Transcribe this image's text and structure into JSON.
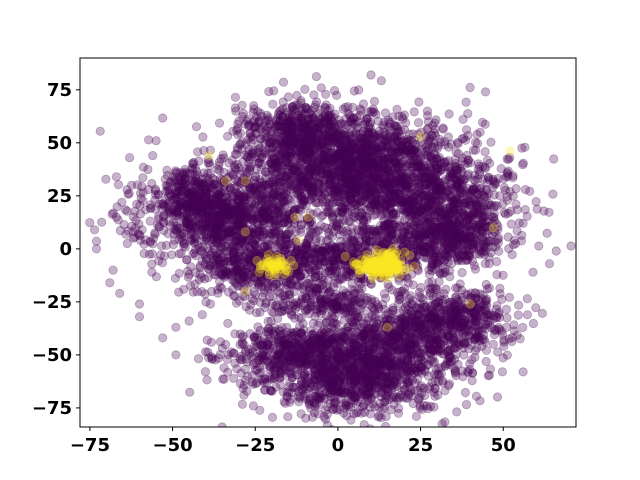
{
  "chart_data": {
    "type": "scatter",
    "title": "",
    "xlabel": "",
    "ylabel": "",
    "xlim": [
      -78,
      72
    ],
    "ylim": [
      -84,
      90
    ],
    "x_ticks": [
      -75,
      -50,
      -25,
      0,
      25,
      50
    ],
    "y_ticks": [
      -75,
      -50,
      -25,
      0,
      25,
      50,
      75
    ],
    "x_tick_labels": [
      "−75",
      "−50",
      "−25",
      "0",
      "25",
      "50"
    ],
    "y_tick_labels": [
      "−75",
      "−50",
      "−25",
      "0",
      "25",
      "50",
      "75"
    ],
    "grid": false,
    "legend": "none",
    "marker_alpha": 0.3,
    "colors": {
      "class_0": "#440154",
      "class_1": "#fde725"
    },
    "clusters": [
      {
        "class": 0,
        "cx": 0,
        "cy": 35,
        "sx": 18,
        "sy": 14,
        "n": 1400
      },
      {
        "class": 0,
        "cx": -35,
        "cy": 15,
        "sx": 13,
        "sy": 10,
        "n": 900
      },
      {
        "class": 0,
        "cx": 30,
        "cy": 22,
        "sx": 12,
        "sy": 11,
        "n": 700
      },
      {
        "class": 0,
        "cx": -12,
        "cy": 55,
        "sx": 8,
        "sy": 7,
        "n": 350
      },
      {
        "class": 0,
        "cx": 10,
        "cy": 45,
        "sx": 12,
        "sy": 10,
        "n": 500
      },
      {
        "class": 0,
        "cx": -25,
        "cy": -8,
        "sx": 10,
        "sy": 8,
        "n": 450
      },
      {
        "class": 0,
        "cx": 0,
        "cy": -5,
        "sx": 9,
        "sy": 6,
        "n": 300
      },
      {
        "class": 0,
        "cx": 22,
        "cy": 0,
        "sx": 10,
        "sy": 7,
        "n": 350
      },
      {
        "class": 0,
        "cx": 5,
        "cy": -58,
        "sx": 15,
        "sy": 10,
        "n": 1100
      },
      {
        "class": 0,
        "cx": 20,
        "cy": -40,
        "sx": 14,
        "sy": 8,
        "n": 600
      },
      {
        "class": 0,
        "cx": -15,
        "cy": -48,
        "sx": 9,
        "sy": 6,
        "n": 300
      },
      {
        "class": 0,
        "cx": 35,
        "cy": -30,
        "sx": 8,
        "sy": 6,
        "n": 250
      },
      {
        "class": 0,
        "cx": -5,
        "cy": -25,
        "sx": 10,
        "sy": 4,
        "n": 200
      },
      {
        "class": 0,
        "cx": 40,
        "cy": 5,
        "sx": 6,
        "sy": 6,
        "n": 150
      },
      {
        "class": 0,
        "cx": -45,
        "cy": 28,
        "sx": 5,
        "sy": 5,
        "n": 120
      },
      {
        "class": 1,
        "cx": 15,
        "cy": -7,
        "sx": 3,
        "sy": 3,
        "n": 130
      },
      {
        "class": 1,
        "cx": 10,
        "cy": -8,
        "sx": 2.5,
        "sy": 2,
        "n": 60
      },
      {
        "class": 1,
        "cx": -19,
        "cy": -8,
        "sx": 2.5,
        "sy": 2,
        "n": 60
      }
    ],
    "outliers": [
      {
        "class": 0,
        "x": 10,
        "y": 82
      },
      {
        "class": 0,
        "x": -55,
        "y": 51
      },
      {
        "class": 0,
        "x": -56,
        "y": 44
      },
      {
        "class": 0,
        "x": -63,
        "y": 43
      },
      {
        "class": 0,
        "x": -67,
        "y": 34
      },
      {
        "class": 0,
        "x": -67,
        "y": 15
      },
      {
        "class": 0,
        "x": -73,
        "y": 0
      },
      {
        "class": 0,
        "x": -68,
        "y": -10
      },
      {
        "class": 0,
        "x": -69,
        "y": -16
      },
      {
        "class": 0,
        "x": -66,
        "y": -21
      },
      {
        "class": 0,
        "x": -60,
        "y": -26
      },
      {
        "class": 0,
        "x": -60,
        "y": -32
      },
      {
        "class": 0,
        "x": -49,
        "y": -37
      },
      {
        "class": 0,
        "x": -53,
        "y": -42
      },
      {
        "class": 0,
        "x": -49,
        "y": -50
      },
      {
        "class": 0,
        "x": -45,
        "y": -34
      },
      {
        "class": 0,
        "x": 43,
        "y": 55
      },
      {
        "class": 0,
        "x": 47,
        "y": 32
      },
      {
        "class": 0,
        "x": 52,
        "y": 27
      },
      {
        "class": 0,
        "x": 49,
        "y": 25
      },
      {
        "class": 0,
        "x": 56,
        "y": 12
      },
      {
        "class": 0,
        "x": 66,
        "y": -1
      },
      {
        "class": 0,
        "x": 64,
        "y": -7
      },
      {
        "class": 0,
        "x": 59,
        "y": -11
      },
      {
        "class": 0,
        "x": 48,
        "y": -6
      },
      {
        "class": 0,
        "x": 56,
        "y": -58
      },
      {
        "class": 0,
        "x": 51,
        "y": -37
      },
      {
        "class": 0,
        "x": 47,
        "y": -45
      },
      {
        "class": 1,
        "x": -39,
        "y": 44
      },
      {
        "class": 1,
        "x": 52,
        "y": 46
      },
      {
        "class": 1,
        "x": 25,
        "y": 53
      },
      {
        "class": 1,
        "x": -34,
        "y": 32
      },
      {
        "class": 1,
        "x": -28,
        "y": 32
      },
      {
        "class": 1,
        "x": -13,
        "y": 15
      },
      {
        "class": 1,
        "x": -9,
        "y": 15
      },
      {
        "class": 1,
        "x": -12,
        "y": 4
      },
      {
        "class": 1,
        "x": -28,
        "y": 8
      },
      {
        "class": 1,
        "x": 40,
        "y": -26
      },
      {
        "class": 1,
        "x": 47,
        "y": 10
      },
      {
        "class": 1,
        "x": -28,
        "y": -20
      },
      {
        "class": 1,
        "x": 15,
        "y": -37
      }
    ]
  }
}
